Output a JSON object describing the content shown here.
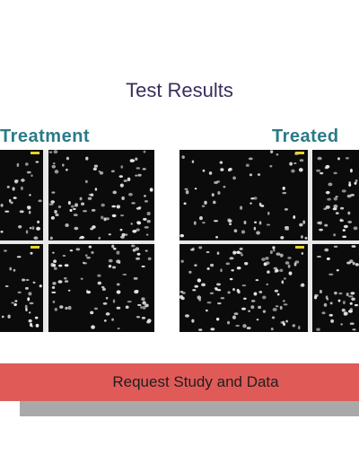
{
  "header": {
    "title": "Test Results"
  },
  "groups": [
    {
      "label": "Treatment"
    },
    {
      "label": "Treated"
    }
  ],
  "button": {
    "label": "Request Study and Data"
  }
}
